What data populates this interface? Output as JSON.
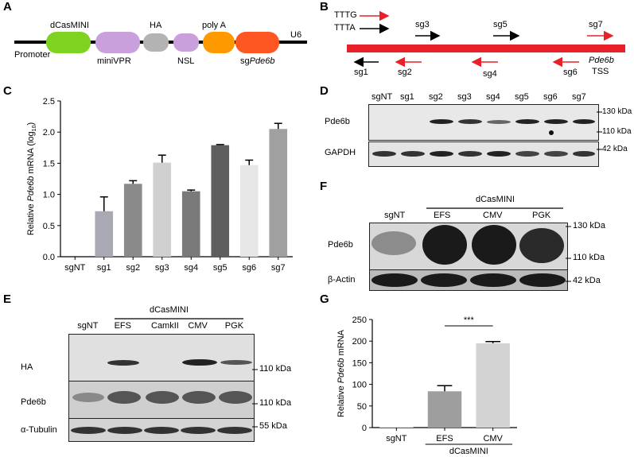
{
  "panels": {
    "A": {
      "label": "A",
      "promoter": "Promoter",
      "dcas": "dCasMINI",
      "ha": "HA",
      "polya": "poly A",
      "u6": "U6",
      "minivpr": "miniVPR",
      "nsl": "NSL",
      "sg_prefix": "sg",
      "sg_gene": "Pde6b",
      "colors": {
        "dcas": "#7ed321",
        "minivpr": "#c9a0dc",
        "ha": "#b3b3b3",
        "nsl": "#c9a0dc",
        "polya": "#ff9900",
        "sg": "#ff5722"
      }
    },
    "B": {
      "label": "B",
      "tttg": "TTTG",
      "ttta": "TTTA",
      "sgs_top": [
        "sg3",
        "sg5",
        "sg7"
      ],
      "sgs_bottom": [
        "sg1",
        "sg2",
        "sg4",
        "sg6"
      ],
      "gene": "Pde6b",
      "tss": "TSS",
      "colors": {
        "red": "#e8202a",
        "black": "#000000"
      }
    },
    "C": {
      "label": "C"
    },
    "D": {
      "label": "D",
      "lanes": [
        "sgNT",
        "sg1",
        "sg2",
        "sg3",
        "sg4",
        "sg5",
        "sg6",
        "sg7"
      ],
      "rows": [
        "Pde6b",
        "GAPDH"
      ],
      "markers": [
        "130 kDa",
        "110 kDa",
        "42 kDa"
      ]
    },
    "E": {
      "label": "E",
      "group": "dCasMINI",
      "lanes": [
        "sgNT",
        "EFS",
        "CamkII",
        "CMV",
        "PGK"
      ],
      "rows": [
        "HA",
        "Pde6b",
        "α-Tubulin"
      ],
      "markers": [
        "110 kDa",
        "110 kDa",
        "55 kDa"
      ]
    },
    "F": {
      "label": "F",
      "group": "dCasMINI",
      "lanes": [
        "sgNT",
        "EFS",
        "CMV",
        "PGK"
      ],
      "rows": [
        "Pde6b",
        "β-Actin"
      ],
      "markers": [
        "130 kDa",
        "110 kDa",
        "42 kDa"
      ]
    },
    "G": {
      "label": "G",
      "group": "dCasMINI",
      "significance": "***"
    }
  },
  "chart_data": [
    {
      "id": "C",
      "type": "bar",
      "categories": [
        "sgNT",
        "sg1",
        "sg2",
        "sg3",
        "sg4",
        "sg5",
        "sg6",
        "sg7"
      ],
      "values": [
        0,
        0.73,
        1.17,
        1.51,
        1.05,
        1.79,
        1.47,
        2.05
      ],
      "errors": [
        0,
        0.23,
        0.05,
        0.12,
        0.02,
        0.01,
        0.08,
        0.09
      ],
      "colors": [
        "#ffffff",
        "#a9a9b3",
        "#8a8a8a",
        "#d0d0d0",
        "#7a7a7a",
        "#5e5e5e",
        "#e6e6e6",
        "#a0a0a0"
      ],
      "ylabel_prefix": "Relative ",
      "ylabel_gene": "Pde6b",
      "ylabel_suffix": " mRNA (log",
      "ylabel_sub": "10",
      "ylabel_close": ")",
      "ylim": [
        0,
        2.5
      ],
      "yticks": [
        "0.0",
        "0.5",
        "1.0",
        "1.5",
        "2.0",
        "2.5"
      ]
    },
    {
      "id": "G",
      "type": "bar",
      "categories": [
        "sgNT",
        "EFS",
        "CMV"
      ],
      "values": [
        1,
        84,
        195
      ],
      "errors": [
        0,
        13,
        4
      ],
      "colors": [
        "#ffffff",
        "#9e9e9e",
        "#d3d3d3"
      ],
      "ylabel_prefix": "Relative ",
      "ylabel_gene": "Pde6b",
      "ylabel_suffix": " mRNA",
      "ylim": [
        0,
        250
      ],
      "yticks": [
        "0",
        "50",
        "100",
        "150",
        "200",
        "250"
      ]
    }
  ]
}
